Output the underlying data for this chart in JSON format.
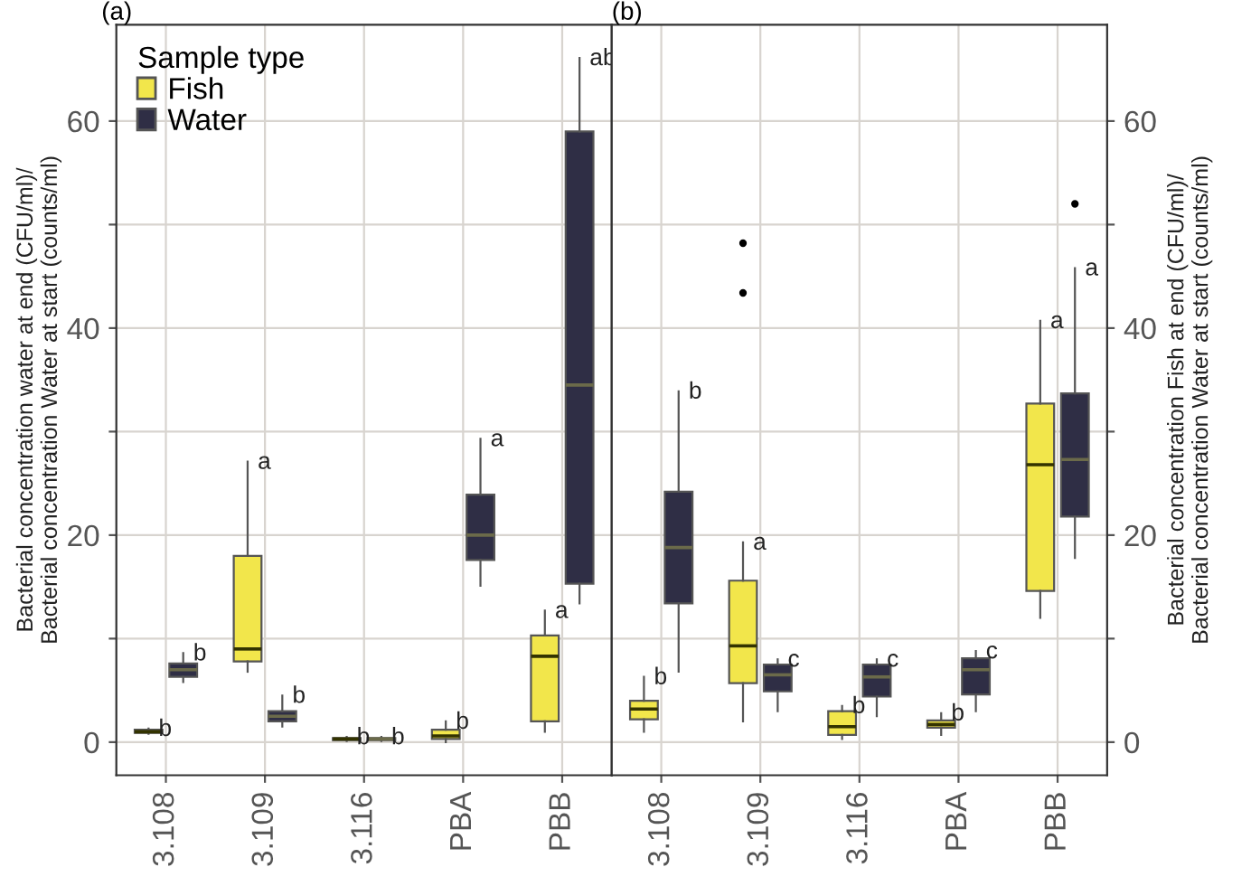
{
  "chart_data": [
    {
      "type": "box",
      "title": "(a)",
      "ylabel": "Bacterial concentration water at end (CFU/ml)/\nBacterial concentration Water at start (counts/ml)",
      "legend_title": "Sample type",
      "legend": "top left",
      "grid": true,
      "categories": [
        "3.108",
        "3.109",
        "3.116",
        "PBA",
        "PBB"
      ],
      "ylim": [
        -3.2,
        69.3
      ],
      "yticks": [
        0,
        {
          "value": 10,
          "label": null
        },
        20,
        {
          "value": 30,
          "label": null
        },
        40,
        {
          "value": 50,
          "label": null
        },
        60
      ],
      "series": [
        {
          "name": "Fish",
          "color": "#f2e64b",
          "boxes": [
            {
              "low": 0.8,
              "q1": 0.9,
              "median": 1.0,
              "q3": 1.2,
              "high": 1.3
            },
            {
              "low": 6.8,
              "q1": 7.8,
              "median": 9.0,
              "q3": 18.0,
              "high": 27.1
            },
            {
              "low": 0.1,
              "q1": 0.2,
              "median": 0.3,
              "q3": 0.4,
              "high": 0.5
            },
            {
              "low": 0,
              "q1": 0.3,
              "median": 0.6,
              "q3": 1.2,
              "high": 2.0
            },
            {
              "low": 1.0,
              "q1": 2.0,
              "median": 8.3,
              "q3": 10.3,
              "high": 12.7
            }
          ]
        },
        {
          "name": "Water",
          "color": "#2f2e45",
          "boxes": [
            {
              "low": 5.8,
              "q1": 6.3,
              "median": 7.0,
              "q3": 7.6,
              "high": 8.6
            },
            {
              "low": 1.5,
              "q1": 2.0,
              "median": 2.5,
              "q3": 3.0,
              "high": 4.5
            },
            {
              "low": 0.1,
              "q1": 0.2,
              "median": 0.3,
              "q3": 0.4,
              "high": 0.5
            },
            {
              "low": 15.1,
              "q1": 17.6,
              "median": 20.0,
              "q3": 23.9,
              "high": 29.3
            },
            {
              "low": 13.4,
              "q1": 15.3,
              "median": 34.5,
              "q3": 59.0,
              "high": 66.1
            }
          ]
        }
      ],
      "annotations": [
        "b",
        "b",
        "a",
        "b",
        "b",
        "b",
        "b",
        "a",
        "a",
        "ab"
      ]
    },
    {
      "type": "box",
      "title": "(b)",
      "y2label": "Bacterial concentration Fish at end (CFU/ml)/\nBacterial concentration Water at start (counts/ml)",
      "grid": true,
      "categories": [
        "3.108",
        "3.109",
        "3.116",
        "PBA",
        "PBB"
      ],
      "y2lim": [
        -3.2,
        69.3
      ],
      "y2ticks": [
        0,
        {
          "value": 10,
          "label": null
        },
        20,
        {
          "value": 30,
          "label": null
        },
        40,
        {
          "value": 50,
          "label": null
        },
        60
      ],
      "series": [
        {
          "color": "#f2e64b",
          "axis": "y2",
          "boxes": [
            {
              "low": 1.0,
              "q1": 2.2,
              "median": 3.2,
              "q3": 4.0,
              "high": 6.3
            },
            {
              "low": 2.0,
              "q1": 5.7,
              "median": 9.3,
              "q3": 15.6,
              "high": 19.3,
              "outliers": [
                43.4,
                48.2
              ]
            },
            {
              "low": 0.3,
              "q1": 0.7,
              "median": 1.5,
              "q3": 3.0,
              "high": 3.5
            },
            {
              "low": 0.7,
              "q1": 1.4,
              "median": 1.7,
              "q3": 2.1,
              "high": 2.8
            },
            {
              "low": 12.0,
              "q1": 14.6,
              "median": 26.8,
              "q3": 32.7,
              "high": 40.7
            }
          ]
        },
        {
          "color": "#2f2e45",
          "axis": "y2",
          "boxes": [
            {
              "low": 6.8,
              "q1": 13.4,
              "median": 18.8,
              "q3": 24.2,
              "high": 33.9
            },
            {
              "low": 3.0,
              "q1": 4.9,
              "median": 6.5,
              "q3": 7.5,
              "high": 8.0
            },
            {
              "low": 2.5,
              "q1": 4.4,
              "median": 6.3,
              "q3": 7.5,
              "high": 8.0
            },
            {
              "low": 3.0,
              "q1": 4.6,
              "median": 7.0,
              "q3": 8.1,
              "high": 8.8
            },
            {
              "low": 17.8,
              "q1": 21.8,
              "median": 27.3,
              "q3": 33.7,
              "high": 45.8,
              "outliers": [
                52.0
              ]
            }
          ]
        }
      ],
      "annotations": [
        "b",
        "b",
        "a",
        "c",
        "b",
        "c",
        "b",
        "c",
        "a",
        "a"
      ]
    }
  ]
}
